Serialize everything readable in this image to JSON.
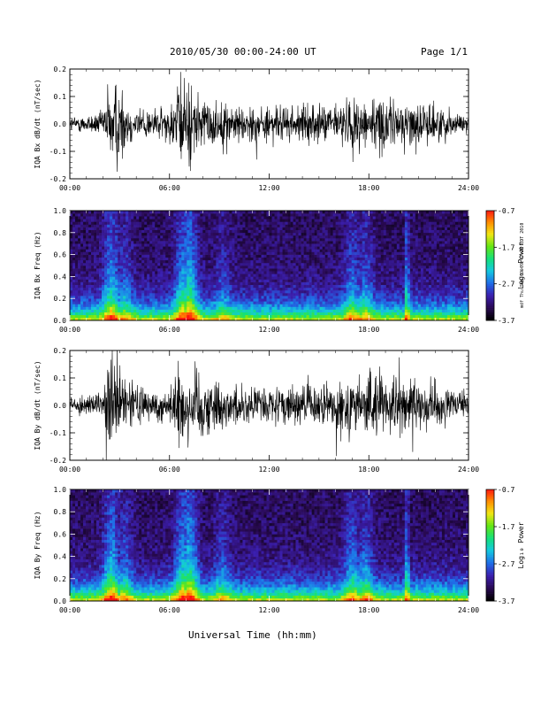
{
  "header": {
    "title": "2010/05/30  00:00-24:00 UT",
    "page": "Page 1/1"
  },
  "footer": {
    "x_axis_title": "Universal Time (hh:mm)"
  },
  "stamp": "mdf Thu Sep 09 09:47:26 EDT 2010",
  "colors": {
    "trace": "#000000",
    "spectrogram_colormap": [
      "#000000",
      "#2a0a55",
      "#3b1fb0",
      "#1e6ee8",
      "#14c8e0",
      "#14e07a",
      "#64e614",
      "#f0e614",
      "#ff8c00",
      "#ff1010"
    ]
  },
  "chart_data": [
    {
      "type": "line",
      "title": "",
      "ylabel": "IQA Bx dB/dt (nT/sec)",
      "xlabel": "",
      "xlim": [
        0,
        24
      ],
      "ylim": [
        -0.2,
        0.2
      ],
      "x_tick_labels": [
        "00:00",
        "06:00",
        "12:00",
        "18:00",
        "24:00"
      ],
      "y_tick_labels": [
        "-0.2",
        "-0.1",
        "0.0",
        "0.1",
        "0.2"
      ],
      "grid": false,
      "amplitude_profile": {
        "hours": [
          0,
          1,
          2,
          2.4,
          3,
          3.6,
          4,
          5,
          6,
          6.6,
          7.3,
          8,
          9,
          10,
          12,
          14,
          16,
          17,
          18,
          19,
          20,
          21,
          22,
          23,
          24
        ],
        "amplitude": [
          0.035,
          0.04,
          0.06,
          0.2,
          0.2,
          0.09,
          0.08,
          0.07,
          0.08,
          0.2,
          0.2,
          0.12,
          0.1,
          0.09,
          0.08,
          0.08,
          0.09,
          0.12,
          0.13,
          0.12,
          0.1,
          0.1,
          0.09,
          0.06,
          0.04
        ]
      }
    },
    {
      "type": "heatmap",
      "title": "",
      "ylabel": "IQA Bx Freq (Hz)",
      "xlabel": "",
      "xlim": [
        0,
        24
      ],
      "ylim": [
        0,
        1
      ],
      "x_tick_labels": [
        "00:00",
        "06:00",
        "12:00",
        "18:00",
        "24:00"
      ],
      "y_tick_labels": [
        "0.0",
        "0.2",
        "0.4",
        "0.6",
        "0.8",
        "1.0"
      ],
      "colorbar_label": "Log₁₀ Power",
      "colorbar_range": [
        -3.7,
        -0.7
      ],
      "colorbar_ticks": [
        "-0.7",
        "-1.7",
        "-2.7",
        "-3.7"
      ],
      "activity_hours": [
        2.5,
        3.3,
        6.8,
        7.2,
        9.2,
        17.0,
        17.8,
        20.3
      ],
      "activity_strength": [
        0.8,
        0.45,
        0.85,
        1.0,
        0.35,
        0.55,
        0.5,
        0.9
      ]
    },
    {
      "type": "line",
      "title": "",
      "ylabel": "IQA By dB/dt (nT/sec)",
      "xlabel": "",
      "xlim": [
        0,
        24
      ],
      "ylim": [
        -0.2,
        0.2
      ],
      "x_tick_labels": [
        "00:00",
        "06:00",
        "12:00",
        "18:00",
        "24:00"
      ],
      "y_tick_labels": [
        "-0.2",
        "-0.1",
        "0.0",
        "0.1",
        "0.2"
      ],
      "grid": false,
      "amplitude_profile": {
        "hours": [
          0,
          1,
          2,
          2.2,
          3,
          3.6,
          4,
          5,
          6,
          6.6,
          7.3,
          8,
          9,
          10,
          12,
          14,
          16,
          17,
          18,
          19,
          20,
          21,
          22,
          23,
          24
        ],
        "amplitude": [
          0.04,
          0.04,
          0.05,
          0.2,
          0.2,
          0.12,
          0.09,
          0.07,
          0.08,
          0.2,
          0.2,
          0.14,
          0.11,
          0.09,
          0.08,
          0.09,
          0.1,
          0.14,
          0.15,
          0.14,
          0.12,
          0.11,
          0.1,
          0.07,
          0.05
        ]
      }
    },
    {
      "type": "heatmap",
      "title": "",
      "ylabel": "IQA By Freq (Hz)",
      "xlabel": "",
      "xlim": [
        0,
        24
      ],
      "ylim": [
        0,
        1
      ],
      "x_tick_labels": [
        "00:00",
        "06:00",
        "12:00",
        "18:00",
        "24:00"
      ],
      "y_tick_labels": [
        "0.0",
        "0.2",
        "0.4",
        "0.6",
        "0.8",
        "1.0"
      ],
      "colorbar_label": "Log₁₀ Power",
      "colorbar_range": [
        -3.7,
        -0.7
      ],
      "colorbar_ticks": [
        "-0.7",
        "-1.7",
        "-2.7",
        "-3.7"
      ],
      "activity_hours": [
        2.5,
        3.3,
        6.8,
        7.2,
        9.2,
        17.0,
        17.8,
        20.3
      ],
      "activity_strength": [
        0.85,
        0.5,
        0.85,
        1.0,
        0.4,
        0.6,
        0.55,
        0.9
      ]
    }
  ]
}
